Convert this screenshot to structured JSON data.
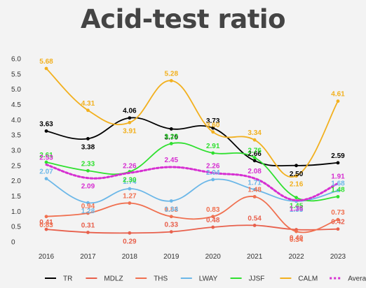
{
  "chart_data": {
    "type": "line",
    "title": "Acid-test ratio",
    "xlabel": "",
    "ylabel": "",
    "categories": [
      "2016",
      "2017",
      "2018",
      "2019",
      "2020",
      "2021",
      "2022",
      "2023"
    ],
    "ylim": [
      0,
      6.0
    ],
    "yticks": [
      "0",
      "0.5",
      "1.0",
      "1.5",
      "2.0",
      "2.5",
      "3.0",
      "3.5",
      "4.0",
      "4.5",
      "5.0",
      "5.5",
      "6.0"
    ],
    "grid": false,
    "legend": "bottom",
    "series": [
      {
        "name": "TR",
        "color": "#000000",
        "dashed": false,
        "values": [
          3.63,
          3.38,
          4.06,
          3.7,
          3.73,
          2.66,
          2.5,
          2.59
        ],
        "labels": [
          "3.63",
          "3.38",
          "4.06",
          "3.70",
          "3.73",
          "2.66",
          "2.50",
          "2.59"
        ]
      },
      {
        "name": "MDLZ",
        "color": "#e8604c",
        "dashed": false,
        "values": [
          0.41,
          0.31,
          0.29,
          0.33,
          0.48,
          0.54,
          0.4,
          0.42
        ],
        "labels": [
          "0.41",
          "0.31",
          "0.29",
          "0.33",
          "0.48",
          "0.54",
          "0.40",
          "0.42"
        ]
      },
      {
        "name": "THS",
        "color": "#f07050",
        "dashed": false,
        "values": [
          0.83,
          0.94,
          1.27,
          0.83,
          0.83,
          1.48,
          0.34,
          0.73
        ],
        "labels": [
          "0.83",
          "0.94",
          "1.27",
          "0.83",
          "0.83",
          "1.48",
          "0.34",
          "0.73"
        ]
      },
      {
        "name": "LWAY",
        "color": "#6bb7e8",
        "dashed": false,
        "values": [
          2.07,
          1.28,
          1.74,
          1.34,
          2.04,
          1.71,
          1.33,
          1.68
        ],
        "labels": [
          "2.07",
          "1.28",
          "1.74",
          "1.34",
          "2.04",
          "1.71",
          "1.33",
          "1.68"
        ]
      },
      {
        "name": "JJSF",
        "color": "#2fe02f",
        "dashed": false,
        "values": [
          2.61,
          2.33,
          2.3,
          3.22,
          2.91,
          2.76,
          1.45,
          1.48
        ],
        "labels": [
          "2.61",
          "2.33",
          "2.30",
          "3.22",
          "2.91",
          "2.76",
          "1.45",
          "1.48"
        ]
      },
      {
        "name": "CALM",
        "color": "#f2b01e",
        "dashed": false,
        "values": [
          5.68,
          4.31,
          3.91,
          5.28,
          3.6,
          3.34,
          2.16,
          4.61
        ],
        "labels": [
          "5.68",
          "4.31",
          "3.91",
          "5.28",
          "3.60",
          "3.34",
          "2.16",
          "4.61"
        ]
      },
      {
        "name": "Average",
        "color": "#d62fd1",
        "dashed": true,
        "values": [
          2.53,
          2.09,
          2.26,
          2.45,
          2.26,
          2.08,
          1.36,
          1.91
        ],
        "labels": [
          "2.53",
          "2.09",
          "2.26",
          "2.45",
          "2.26",
          "2.08",
          "1.36",
          "1.91"
        ]
      }
    ]
  }
}
